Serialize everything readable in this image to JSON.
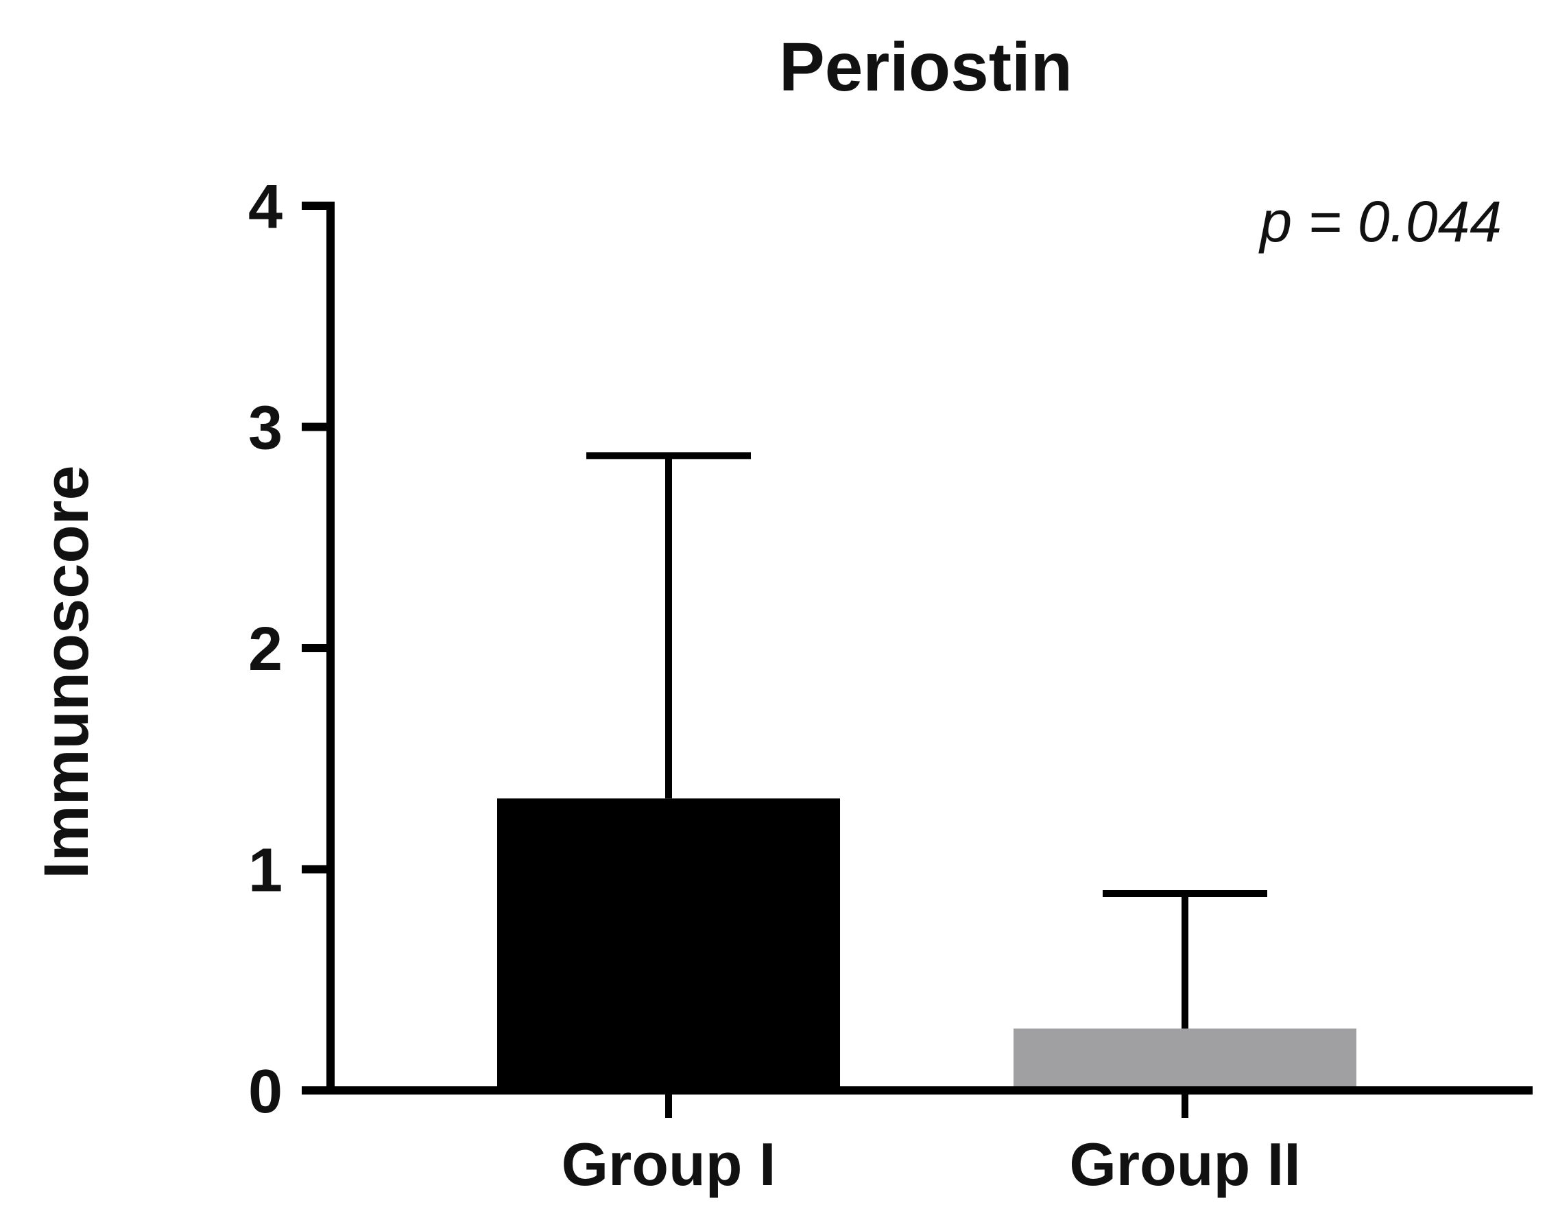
{
  "chart_data": {
    "type": "bar",
    "title": "Periostin",
    "xlabel": "",
    "ylabel": "Immunoscore",
    "ylim": [
      0,
      4
    ],
    "yticks": [
      "0",
      "1",
      "2",
      "3",
      "4"
    ],
    "categories": [
      "Group I",
      "Group II"
    ],
    "values": [
      1.32,
      0.28
    ],
    "error_upper": [
      2.87,
      0.89
    ],
    "bar_colors": [
      "#000000",
      "#a0a0a3"
    ],
    "annotation": "p = 0.044",
    "grid": false,
    "legend": "none"
  }
}
